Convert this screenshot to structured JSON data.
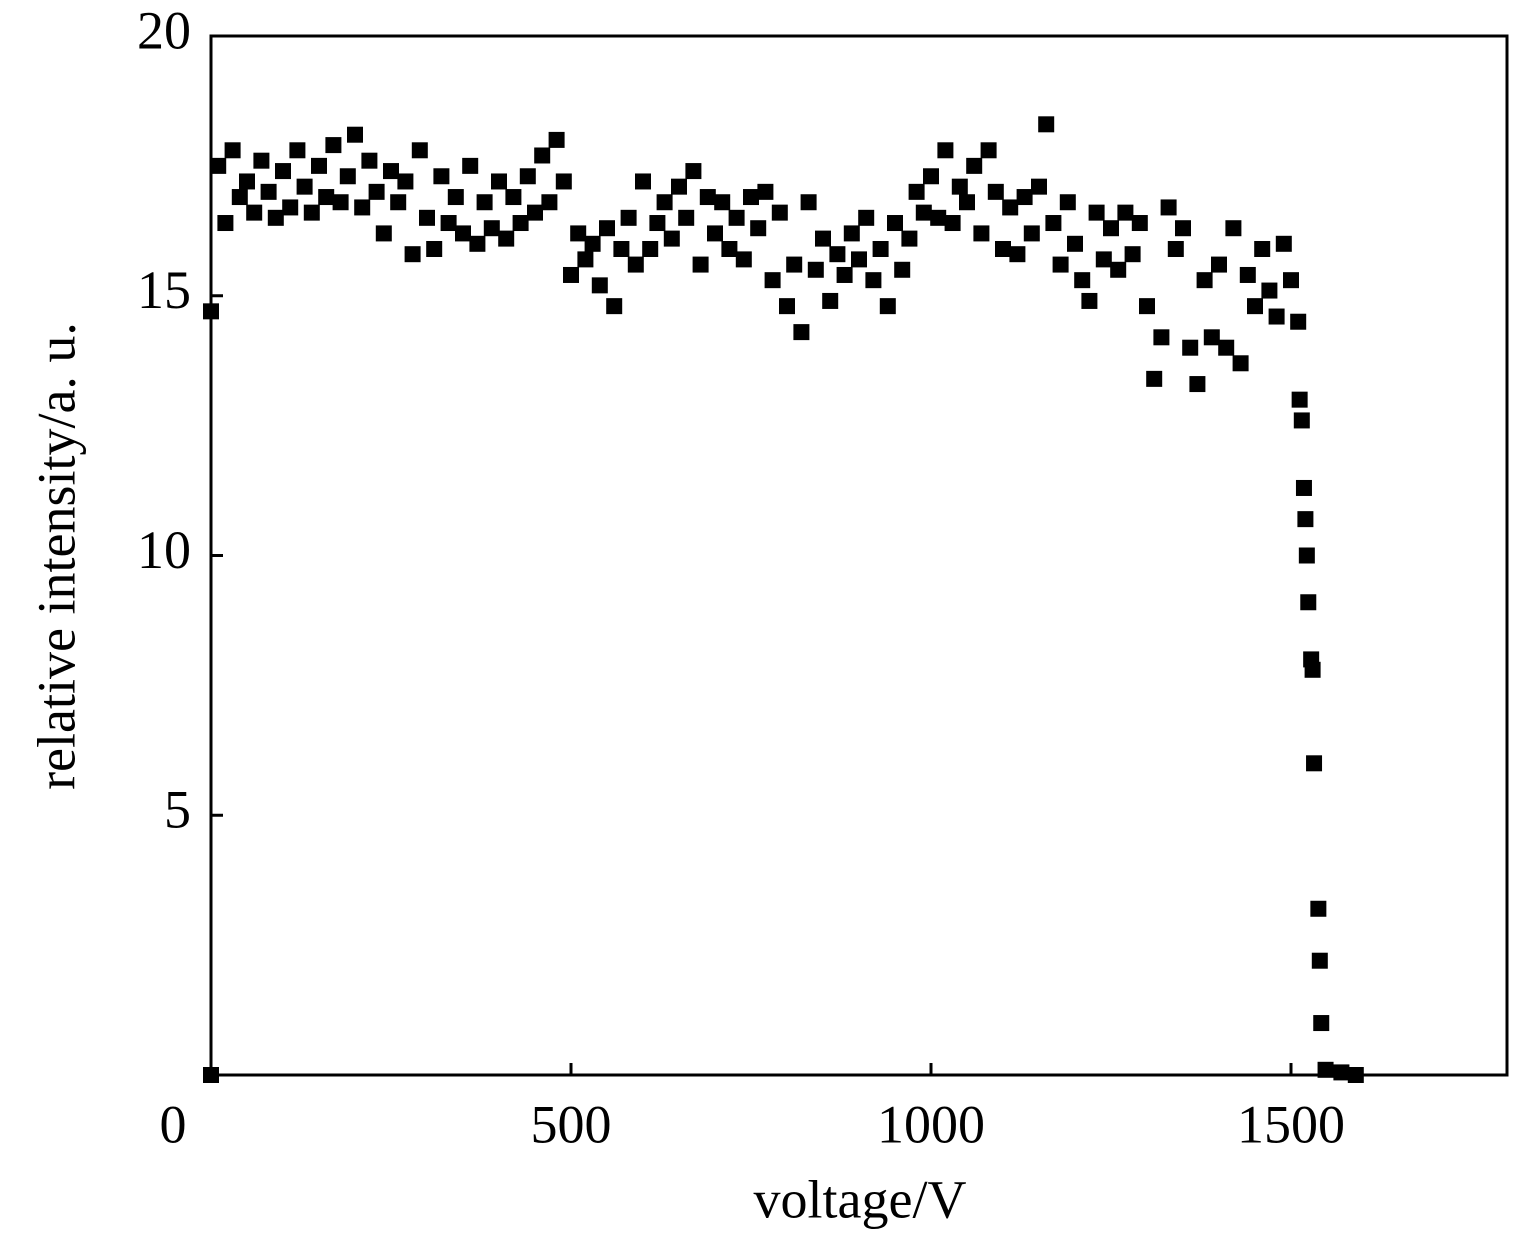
{
  "chart_data": {
    "type": "scatter",
    "xlabel": "voltage/V",
    "ylabel": "relative intensity/a. u.",
    "xlim": [
      0,
      1800
    ],
    "ylim": [
      0,
      20
    ],
    "xticks": [
      0,
      500,
      1000,
      1500
    ],
    "yticks": [
      5,
      10,
      15,
      20
    ],
    "grid": false,
    "series": [
      {
        "color": "#000000",
        "x": [
          0,
          10,
          20,
          30,
          40,
          50,
          60,
          70,
          80,
          90,
          100,
          110,
          120,
          130,
          140,
          150,
          160,
          170,
          180,
          190,
          200,
          210,
          220,
          230,
          240,
          250,
          260,
          270,
          280,
          290,
          300,
          310,
          320,
          330,
          340,
          350,
          360,
          370,
          380,
          390,
          400,
          410,
          420,
          430,
          440,
          450,
          460,
          470,
          480,
          490,
          500,
          510,
          520,
          530,
          540,
          550,
          560,
          570,
          580,
          590,
          600,
          610,
          620,
          630,
          640,
          650,
          660,
          670,
          680,
          690,
          700,
          710,
          720,
          730,
          740,
          750,
          760,
          770,
          780,
          790,
          800,
          810,
          820,
          830,
          840,
          850,
          860,
          870,
          880,
          890,
          900,
          910,
          920,
          930,
          940,
          950,
          960,
          970,
          980,
          990,
          1000,
          1010,
          1020,
          1030,
          1040,
          1050,
          1060,
          1070,
          1080,
          1090,
          1100,
          1110,
          1120,
          1130,
          1140,
          1150,
          1160,
          1170,
          1180,
          1190,
          1200,
          1210,
          1220,
          1230,
          1240,
          1250,
          1260,
          1270,
          1280,
          1290,
          1300,
          1310,
          1320,
          1330,
          1340,
          1350,
          1360,
          1370,
          1380,
          1390,
          1400,
          1410,
          1420,
          1430,
          1440,
          1450,
          1460,
          1470,
          1480,
          1490,
          1500,
          1510,
          1512,
          1515,
          1518,
          1520,
          1522,
          1524,
          1528,
          1530,
          1532,
          1538,
          1540,
          1542,
          1548,
          1570,
          1590,
          0
        ],
        "values": [
          14.7,
          17.5,
          16.4,
          17.8,
          16.9,
          17.2,
          16.6,
          17.6,
          17.0,
          16.5,
          17.4,
          16.7,
          17.8,
          17.1,
          16.6,
          17.5,
          16.9,
          17.9,
          16.8,
          17.3,
          18.1,
          16.7,
          17.6,
          17.0,
          16.2,
          17.4,
          16.8,
          17.2,
          15.8,
          17.8,
          16.5,
          15.9,
          17.3,
          16.4,
          16.9,
          16.2,
          17.5,
          16.0,
          16.8,
          16.3,
          17.2,
          16.1,
          16.9,
          16.4,
          17.3,
          16.6,
          17.7,
          16.8,
          18.0,
          17.2,
          15.4,
          16.2,
          15.7,
          16.0,
          15.2,
          16.3,
          14.8,
          15.9,
          16.5,
          15.6,
          17.2,
          15.9,
          16.4,
          16.8,
          16.1,
          17.1,
          16.5,
          17.4,
          15.6,
          16.9,
          16.2,
          16.8,
          15.9,
          16.5,
          15.7,
          16.9,
          16.3,
          17.0,
          15.3,
          16.6,
          14.8,
          15.6,
          14.3,
          16.8,
          15.5,
          16.1,
          14.9,
          15.8,
          15.4,
          16.2,
          15.7,
          16.5,
          15.3,
          15.9,
          14.8,
          16.4,
          15.5,
          16.1,
          17.0,
          16.6,
          17.3,
          16.5,
          17.8,
          16.4,
          17.1,
          16.8,
          17.5,
          16.2,
          17.8,
          17.0,
          15.9,
          16.7,
          15.8,
          16.9,
          16.2,
          17.1,
          18.3,
          16.4,
          15.6,
          16.8,
          16.0,
          15.3,
          14.9,
          16.6,
          15.7,
          16.3,
          15.5,
          16.6,
          15.8,
          16.4,
          14.8,
          13.4,
          14.2,
          16.7,
          15.9,
          16.3,
          14.0,
          13.3,
          15.3,
          14.2,
          15.6,
          14.0,
          16.3,
          13.7,
          15.4,
          14.8,
          15.9,
          15.1,
          14.6,
          16.0,
          15.3,
          14.5,
          13.0,
          12.6,
          11.3,
          10.7,
          10.0,
          9.1,
          8.0,
          7.8,
          6.0,
          3.2,
          2.2,
          1.0,
          0.1,
          0.05,
          0.0,
          0.0
        ]
      }
    ]
  }
}
